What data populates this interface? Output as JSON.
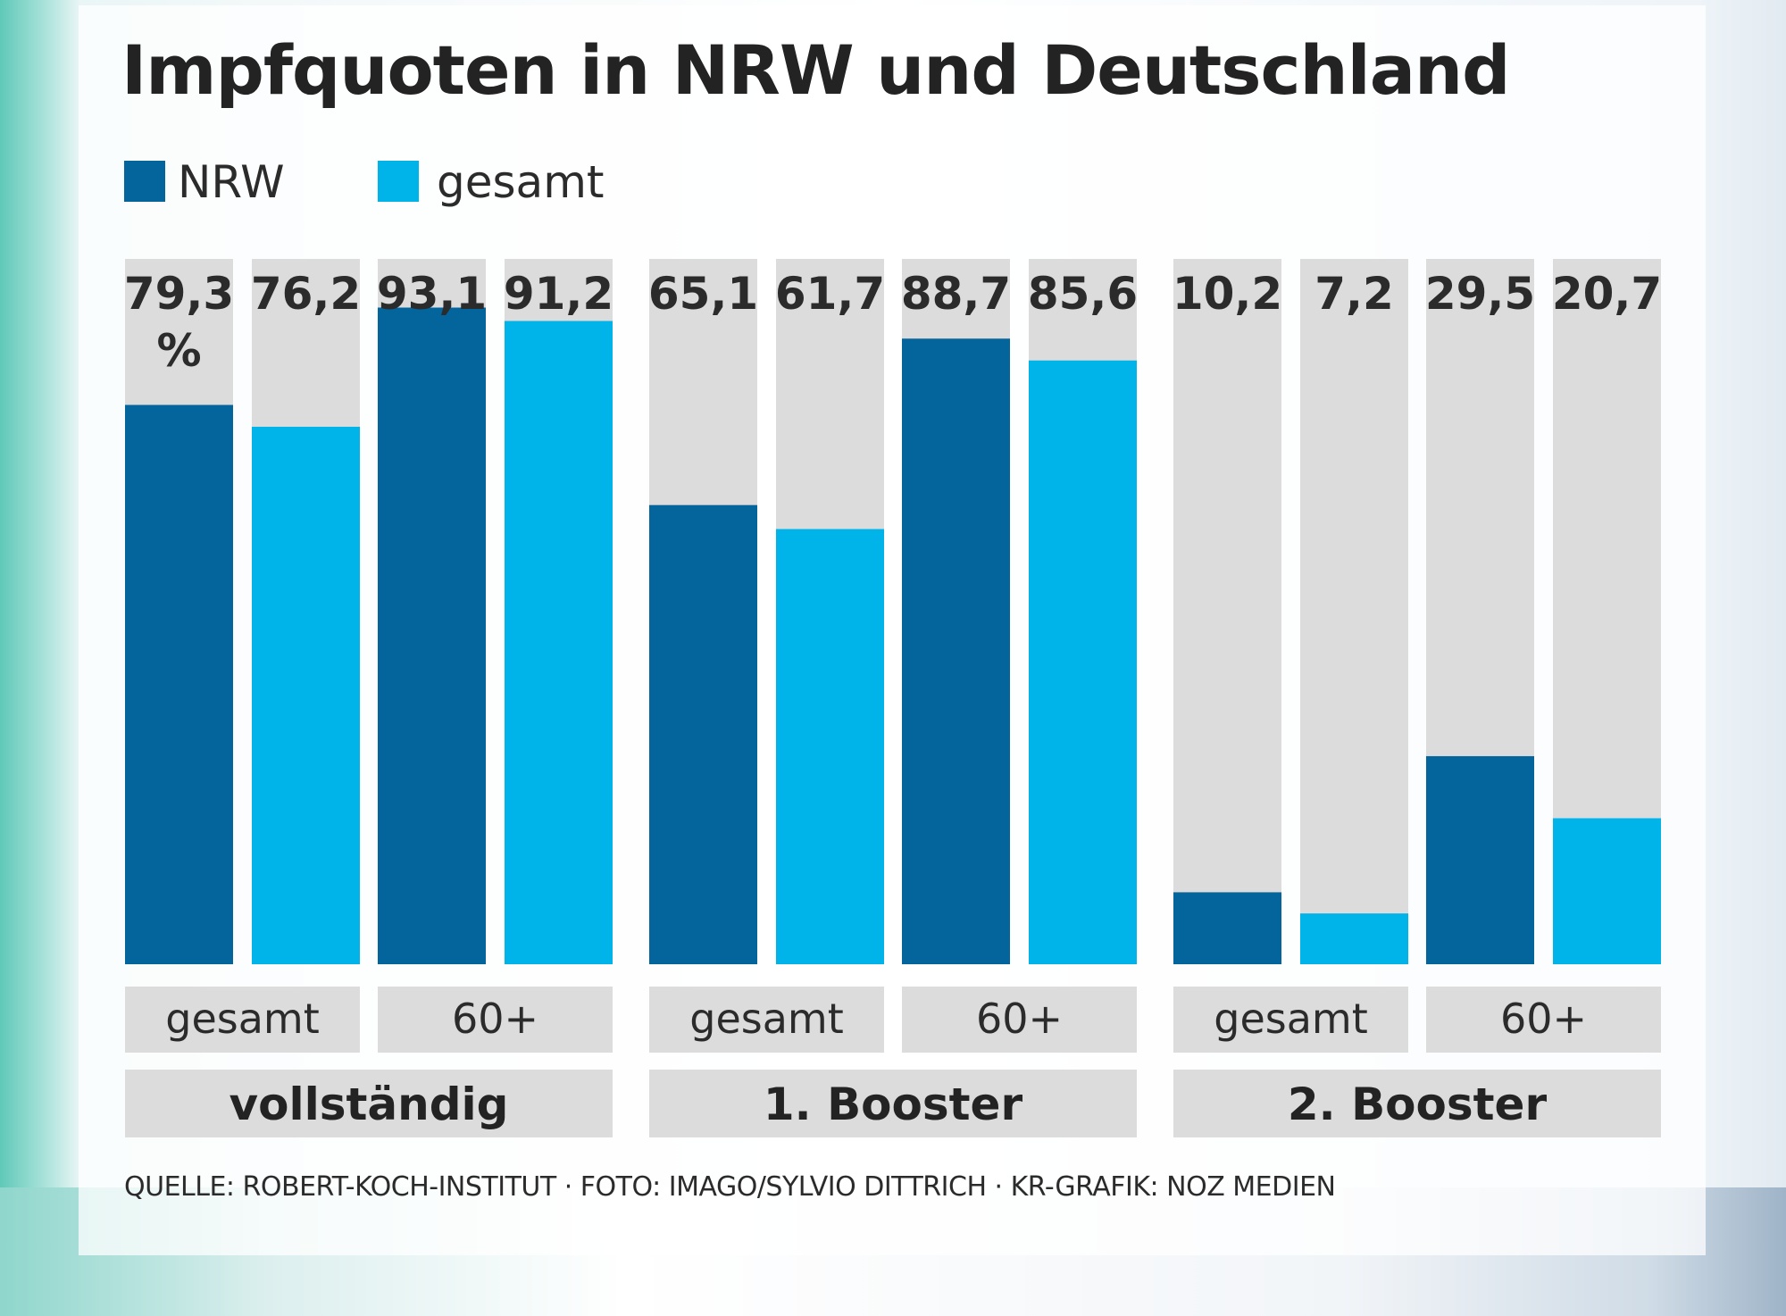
{
  "chart_data": {
    "type": "bar",
    "title": "Impfquoten in NRW und Deutschland",
    "unit_suffix": "%",
    "ylim": [
      0,
      100
    ],
    "legend_position": "top-left",
    "groups": [
      "vollständig",
      "1. Booster",
      "2. Booster"
    ],
    "subcategories": [
      "gesamt",
      "60+"
    ],
    "categories": [
      "vollständig gesamt",
      "vollständig 60+",
      "1. Booster gesamt",
      "1. Booster 60+",
      "2. Booster gesamt",
      "2. Booster 60+"
    ],
    "series": [
      {
        "name": "NRW",
        "color": "#04649c",
        "values": [
          79.3,
          93.1,
          65.1,
          88.7,
          10.2,
          29.5
        ],
        "labels": [
          "79,3",
          "93,1",
          "65,1",
          "88,7",
          "10,2",
          "29,5"
        ]
      },
      {
        "name": "gesamt",
        "color": "#00b4ea",
        "values": [
          76.2,
          91.2,
          61.7,
          85.6,
          7.2,
          20.7
        ],
        "labels": [
          "76,2",
          "91,2",
          "61,7",
          "85,6",
          "7,2",
          "20,7"
        ]
      }
    ],
    "track_color": "#dcdcdc",
    "grid": false
  },
  "source": "QUELLE: ROBERT-KOCH-INSTITUT · FOTO: IMAGO/SYLVIO DITTRICH · KR-GRAFIK: NOZ MEDIEN"
}
